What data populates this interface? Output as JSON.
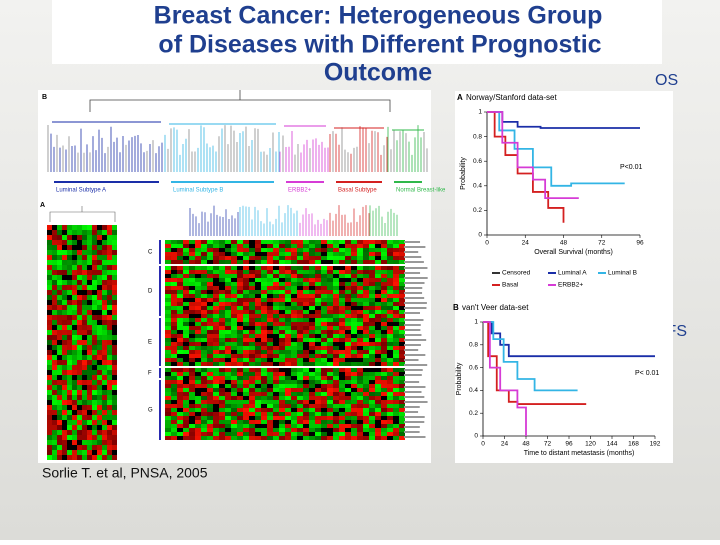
{
  "title_lines": [
    "Breast Cancer: Heterogeneous Group",
    "of Diseases with Different Prognostic",
    "Outcome"
  ],
  "labels": {
    "os": "OS",
    "dfs": "DFS"
  },
  "citation": "Sorlie T. et al, PNSA, 2005",
  "dendrogram": {
    "label": "B",
    "subtypes": [
      "Luminal Subtype A",
      "Luminal Subtype B",
      "ERBB2+",
      "Basal Subtype",
      "Normal Breast-like"
    ]
  },
  "heatmap": {
    "label": "A",
    "clusters": [
      "C",
      "D",
      "E",
      "F",
      "G"
    ]
  },
  "km_top": {
    "label": "A",
    "title": "Norway/Stanford data-set",
    "y_label": "Probability",
    "x_label": "Overall Survival (months)",
    "yticks": [
      "1",
      "0.8",
      "0.6",
      "0.4",
      "0.2",
      "0"
    ],
    "xticks": [
      "0",
      "24",
      "48",
      "72",
      "96"
    ],
    "p_value": "P<0.01",
    "legend": [
      "Censored",
      "Luminal A",
      "Luminal B",
      "Basal",
      "ERBB2+"
    ]
  },
  "km_bottom": {
    "label": "B",
    "title": "van't Veer data-set",
    "y_label": "Probability",
    "x_label": "Time to distant metastasis (months)",
    "yticks": [
      "1",
      "0.8",
      "0.6",
      "0.4",
      "0.2",
      "0"
    ],
    "xticks": [
      "0",
      "24",
      "48",
      "72",
      "96",
      "120",
      "144",
      "168",
      "192"
    ],
    "p_value": "P< 0.01"
  }
}
